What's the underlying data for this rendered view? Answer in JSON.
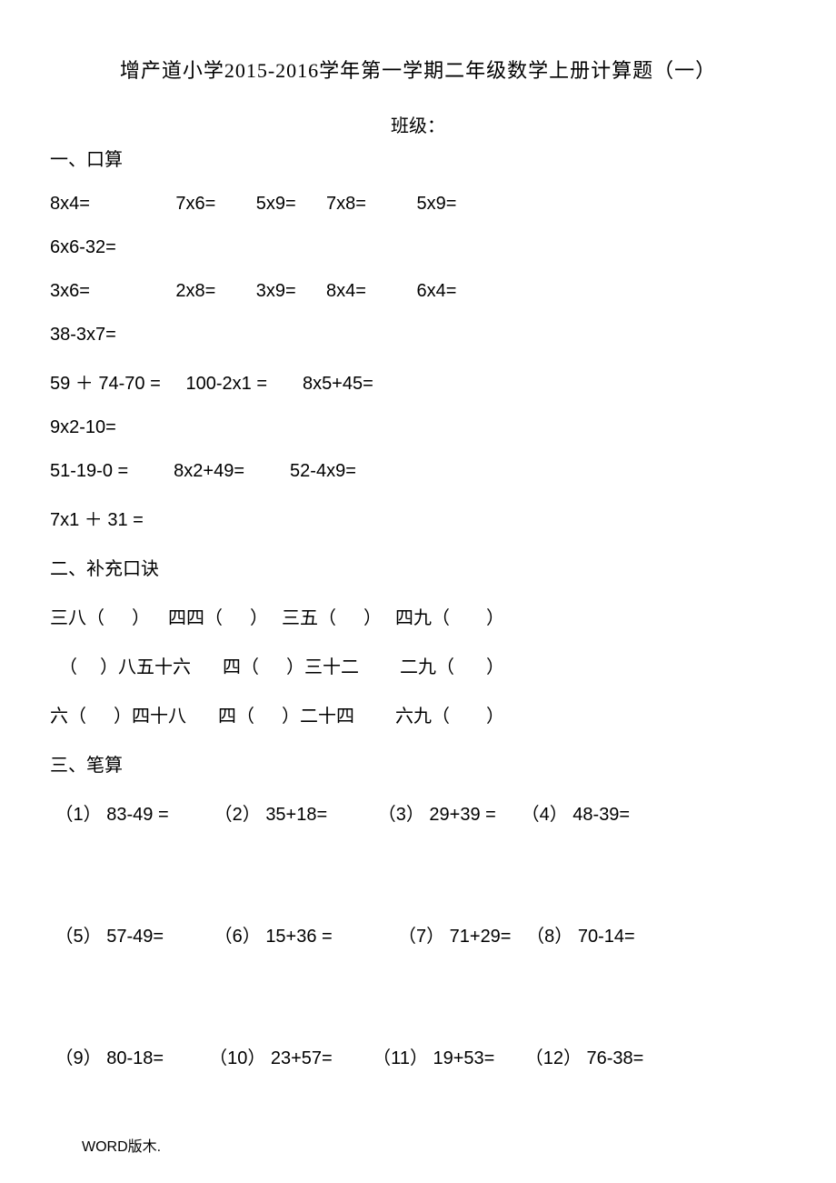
{
  "title": "增产道小学2015-2016学年第一学期二年级数学上册计算题（一）",
  "subtitle": "班级：",
  "section1": {
    "heading": "一、口算",
    "rows": [
      "8x4=                 7x6=        5x9=      7x8=          5x9=",
      "6x6-32=",
      "3x6=                 2x8=        3x9=      8x4=          6x4=",
      "38-3x7=",
      "59 ＋ 74-70 =     100-2x1 =       8x5+45=",
      "9x2-10=",
      "51-19-0 =         8x2+49=         52-4x9=",
      "7x1 ＋ 31 ="
    ]
  },
  "section2": {
    "heading": "二、补充口诀",
    "rows": [
      "三八（      ）    四四（      ）   三五（      ）   四九（        ）",
      "  （     ）八五十六       四（      ）三十二         二九（       ）",
      "六（      ）四十八       四（      ）二十四         六九（        ）"
    ]
  },
  "section3": {
    "heading": "三、笔算",
    "rows": [
      " （1） 83-49 =         （2） 35+18=          （3） 29+39 =     （4） 48-39=",
      " （5） 57-49=          （6） 15+36 =             （7） 71+29=   （8） 70-14=",
      " （9） 80-18=         （10） 23+57=        （11） 19+53=      （12） 76-38="
    ]
  },
  "footer": "WORD版木."
}
